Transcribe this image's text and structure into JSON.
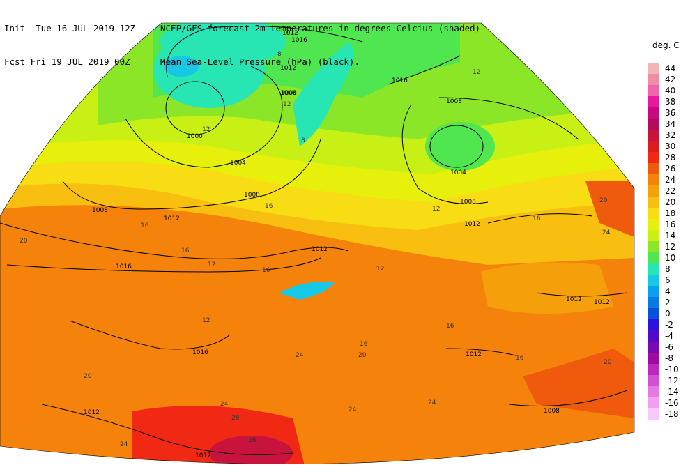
{
  "header": {
    "line1_left": "Init  Tue 16 JUL 2019 12Z",
    "line2_left": "Fcst Fri 19 JUL 2019 00Z",
    "line1_right": "NCEP/GFS forecast 2m temperatures in degrees Celcius (shaded)",
    "line2_right": "Mean Sea-Level Pressure (hPa) (black)."
  },
  "legend": {
    "unit": "deg. C",
    "items": [
      {
        "label": "44",
        "color": "#f5b4b4"
      },
      {
        "label": "42",
        "color": "#f08ca8"
      },
      {
        "label": "40",
        "color": "#f064a8"
      },
      {
        "label": "38",
        "color": "#e8189c"
      },
      {
        "label": "36",
        "color": "#c80880"
      },
      {
        "label": "34",
        "color": "#b40c5c"
      },
      {
        "label": "32",
        "color": "#c8143c"
      },
      {
        "label": "30",
        "color": "#dc1c1c"
      },
      {
        "label": "28",
        "color": "#f02814"
      },
      {
        "label": "26",
        "color": "#f05a0c"
      },
      {
        "label": "24",
        "color": "#f5820a"
      },
      {
        "label": "22",
        "color": "#f5a00a"
      },
      {
        "label": "20",
        "color": "#f8be10"
      },
      {
        "label": "18",
        "color": "#f8dc14"
      },
      {
        "label": "16",
        "color": "#e6f00a"
      },
      {
        "label": "14",
        "color": "#c8f014"
      },
      {
        "label": "12",
        "color": "#8ce628"
      },
      {
        "label": "10",
        "color": "#50e650"
      },
      {
        "label": "8",
        "color": "#28e6b4"
      },
      {
        "label": "6",
        "color": "#14c8e6"
      },
      {
        "label": "4",
        "color": "#0aa0f0"
      },
      {
        "label": "2",
        "color": "#0a78e6"
      },
      {
        "label": "0",
        "color": "#0a50dc"
      },
      {
        "label": "-2",
        "color": "#2814dc"
      },
      {
        "label": "-4",
        "color": "#500ac8"
      },
      {
        "label": "-6",
        "color": "#780ab4"
      },
      {
        "label": "-8",
        "color": "#a00aa0"
      },
      {
        "label": "-10",
        "color": "#be28be"
      },
      {
        "label": "-12",
        "color": "#d250d2"
      },
      {
        "label": "-14",
        "color": "#e678e6"
      },
      {
        "label": "-16",
        "color": "#f0a0f0"
      },
      {
        "label": "-18",
        "color": "#f8c8f8"
      }
    ]
  },
  "isobars": {
    "labels": [
      "1016",
      "1012",
      "1008",
      "1006",
      "1004",
      "1000",
      "1008",
      "1012",
      "1008",
      "1016",
      "1012",
      "1016",
      "1004",
      "1008",
      "1012",
      "1012",
      "1016",
      "1012",
      "1008",
      "1012",
      "1008",
      "1012",
      "1012",
      "1012"
    ]
  },
  "temp_labels": [
    "8",
    "12",
    "12",
    "8",
    "12",
    "16",
    "16",
    "20",
    "16",
    "16",
    "12",
    "12",
    "12",
    "16",
    "20",
    "24",
    "24",
    "28",
    "24",
    "20",
    "16",
    "16",
    "20",
    "24",
    "12",
    "16",
    "20",
    "24",
    "28",
    "24"
  ]
}
